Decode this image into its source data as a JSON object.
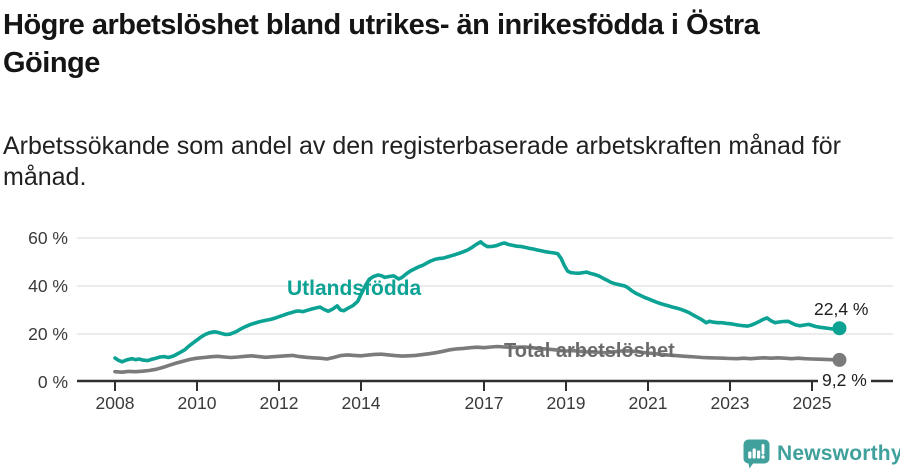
{
  "header": {
    "title_lines": [
      "Högre arbetslöshet bland utrikes- än inrikesfödda i Östra",
      "Göinge"
    ],
    "subtitle_lines": [
      "Arbetssökande som andel av den registerbaserade arbetskraften månad för",
      "månad."
    ]
  },
  "chart_data": {
    "type": "line",
    "title": "Högre arbetslöshet bland utrikes- än inrikesfödda i Östra Göinge",
    "subtitle": "Arbetssökande som andel av den registerbaserade arbetskraften månad för månad.",
    "unit": "%",
    "x_axis": {
      "ticks": [
        2008,
        2010,
        2012,
        2014,
        2017,
        2019,
        2021,
        2023,
        2025
      ],
      "tick_labels": [
        "2008",
        "2010",
        "2012",
        "2014",
        "2017",
        "2019",
        "2021",
        "2023",
        "2025"
      ],
      "range": [
        2007.1,
        2027.1
      ]
    },
    "y_axis": {
      "ticks": [
        0,
        20,
        40,
        60
      ],
      "tick_labels": [
        "0 %",
        "20 %",
        "40 %",
        "60 %"
      ],
      "range": [
        0,
        62
      ],
      "grid": true
    },
    "legend_position": "inline-labels",
    "grid_color": "#e0e0e0",
    "axis_color": "#2f2f2f",
    "series": [
      {
        "name": "Utlandsfödda",
        "color": "#0CA294",
        "label_color": "#0CA294",
        "end_label": "22,4 %",
        "end_value": 22.4,
        "points": [
          [
            2008.0,
            10.0
          ],
          [
            2008.08,
            9.1
          ],
          [
            2008.17,
            8.4
          ],
          [
            2008.3,
            9.3
          ],
          [
            2008.42,
            9.7
          ],
          [
            2008.5,
            9.3
          ],
          [
            2008.58,
            9.6
          ],
          [
            2008.7,
            9.1
          ],
          [
            2008.8,
            8.9
          ],
          [
            2008.92,
            9.6
          ],
          [
            2009.0,
            9.9
          ],
          [
            2009.1,
            10.4
          ],
          [
            2009.2,
            10.6
          ],
          [
            2009.3,
            10.2
          ],
          [
            2009.42,
            10.8
          ],
          [
            2009.5,
            11.5
          ],
          [
            2009.6,
            12.4
          ],
          [
            2009.7,
            13.4
          ],
          [
            2009.8,
            14.9
          ],
          [
            2009.92,
            16.5
          ],
          [
            2010.0,
            17.5
          ],
          [
            2010.1,
            18.8
          ],
          [
            2010.2,
            19.8
          ],
          [
            2010.3,
            20.5
          ],
          [
            2010.42,
            20.9
          ],
          [
            2010.5,
            20.7
          ],
          [
            2010.6,
            20.2
          ],
          [
            2010.7,
            19.8
          ],
          [
            2010.8,
            19.9
          ],
          [
            2010.92,
            20.7
          ],
          [
            2011.0,
            21.4
          ],
          [
            2011.1,
            22.4
          ],
          [
            2011.2,
            23.2
          ],
          [
            2011.3,
            23.9
          ],
          [
            2011.42,
            24.6
          ],
          [
            2011.5,
            25.0
          ],
          [
            2011.6,
            25.4
          ],
          [
            2011.7,
            25.8
          ],
          [
            2011.8,
            26.1
          ],
          [
            2011.92,
            26.7
          ],
          [
            2012.0,
            27.2
          ],
          [
            2012.1,
            27.8
          ],
          [
            2012.2,
            28.4
          ],
          [
            2012.3,
            28.9
          ],
          [
            2012.42,
            29.5
          ],
          [
            2012.5,
            29.6
          ],
          [
            2012.58,
            29.3
          ],
          [
            2012.7,
            29.9
          ],
          [
            2012.8,
            30.4
          ],
          [
            2012.92,
            30.9
          ],
          [
            2013.0,
            31.2
          ],
          [
            2013.1,
            30.2
          ],
          [
            2013.2,
            29.5
          ],
          [
            2013.3,
            30.3
          ],
          [
            2013.42,
            31.7
          ],
          [
            2013.5,
            30.0
          ],
          [
            2013.58,
            29.7
          ],
          [
            2013.7,
            30.9
          ],
          [
            2013.8,
            31.8
          ],
          [
            2013.92,
            33.6
          ],
          [
            2014.0,
            36.5
          ],
          [
            2014.1,
            39.9
          ],
          [
            2014.2,
            42.8
          ],
          [
            2014.3,
            43.9
          ],
          [
            2014.42,
            44.6
          ],
          [
            2014.5,
            44.3
          ],
          [
            2014.58,
            43.6
          ],
          [
            2014.7,
            44.0
          ],
          [
            2014.8,
            44.2
          ],
          [
            2014.92,
            42.9
          ],
          [
            2015.0,
            43.6
          ],
          [
            2015.1,
            45.0
          ],
          [
            2015.2,
            46.2
          ],
          [
            2015.3,
            47.1
          ],
          [
            2015.42,
            48.1
          ],
          [
            2015.5,
            48.6
          ],
          [
            2015.6,
            49.5
          ],
          [
            2015.7,
            50.4
          ],
          [
            2015.8,
            51.1
          ],
          [
            2015.92,
            51.5
          ],
          [
            2016.0,
            51.6
          ],
          [
            2016.1,
            52.1
          ],
          [
            2016.2,
            52.6
          ],
          [
            2016.3,
            53.1
          ],
          [
            2016.42,
            53.8
          ],
          [
            2016.5,
            54.3
          ],
          [
            2016.6,
            55.0
          ],
          [
            2016.7,
            56.0
          ],
          [
            2016.8,
            57.2
          ],
          [
            2016.92,
            58.4
          ],
          [
            2017.0,
            57.2
          ],
          [
            2017.08,
            56.4
          ],
          [
            2017.2,
            56.5
          ],
          [
            2017.3,
            56.8
          ],
          [
            2017.42,
            57.6
          ],
          [
            2017.5,
            57.9
          ],
          [
            2017.6,
            57.3
          ],
          [
            2017.7,
            56.9
          ],
          [
            2017.8,
            56.6
          ],
          [
            2017.92,
            56.4
          ],
          [
            2018.0,
            56.1
          ],
          [
            2018.1,
            55.7
          ],
          [
            2018.2,
            55.4
          ],
          [
            2018.3,
            55.0
          ],
          [
            2018.42,
            54.6
          ],
          [
            2018.5,
            54.3
          ],
          [
            2018.6,
            54.0
          ],
          [
            2018.7,
            53.8
          ],
          [
            2018.8,
            53.4
          ],
          [
            2018.88,
            51.5
          ],
          [
            2018.96,
            48.5
          ],
          [
            2019.04,
            46.2
          ],
          [
            2019.12,
            45.6
          ],
          [
            2019.2,
            45.4
          ],
          [
            2019.3,
            45.3
          ],
          [
            2019.42,
            45.6
          ],
          [
            2019.5,
            45.8
          ],
          [
            2019.6,
            45.2
          ],
          [
            2019.7,
            44.8
          ],
          [
            2019.8,
            44.2
          ],
          [
            2019.92,
            43.1
          ],
          [
            2020.0,
            42.4
          ],
          [
            2020.1,
            41.5
          ],
          [
            2020.2,
            40.9
          ],
          [
            2020.3,
            40.5
          ],
          [
            2020.42,
            40.1
          ],
          [
            2020.5,
            39.4
          ],
          [
            2020.6,
            38.1
          ],
          [
            2020.7,
            37.0
          ],
          [
            2020.8,
            36.2
          ],
          [
            2020.92,
            35.2
          ],
          [
            2021.0,
            34.7
          ],
          [
            2021.1,
            34.0
          ],
          [
            2021.2,
            33.3
          ],
          [
            2021.3,
            32.7
          ],
          [
            2021.42,
            32.1
          ],
          [
            2021.5,
            31.7
          ],
          [
            2021.6,
            31.2
          ],
          [
            2021.7,
            30.8
          ],
          [
            2021.8,
            30.3
          ],
          [
            2021.92,
            29.5
          ],
          [
            2022.0,
            28.9
          ],
          [
            2022.1,
            27.9
          ],
          [
            2022.2,
            27.0
          ],
          [
            2022.3,
            26.1
          ],
          [
            2022.42,
            24.7
          ],
          [
            2022.5,
            25.3
          ],
          [
            2022.6,
            24.9
          ],
          [
            2022.7,
            24.7
          ],
          [
            2022.8,
            24.7
          ],
          [
            2022.92,
            24.4
          ],
          [
            2023.0,
            24.3
          ],
          [
            2023.1,
            24.0
          ],
          [
            2023.2,
            23.7
          ],
          [
            2023.3,
            23.5
          ],
          [
            2023.42,
            23.3
          ],
          [
            2023.5,
            23.6
          ],
          [
            2023.6,
            24.3
          ],
          [
            2023.7,
            25.1
          ],
          [
            2023.8,
            26.0
          ],
          [
            2023.9,
            26.7
          ],
          [
            2024.0,
            25.5
          ],
          [
            2024.1,
            24.7
          ],
          [
            2024.2,
            25.0
          ],
          [
            2024.3,
            25.2
          ],
          [
            2024.42,
            25.3
          ],
          [
            2024.5,
            24.6
          ],
          [
            2024.6,
            23.8
          ],
          [
            2024.7,
            23.4
          ],
          [
            2024.8,
            23.7
          ],
          [
            2024.92,
            24.0
          ],
          [
            2025.0,
            23.6
          ],
          [
            2025.1,
            23.1
          ],
          [
            2025.2,
            22.8
          ],
          [
            2025.3,
            22.6
          ],
          [
            2025.42,
            22.3
          ],
          [
            2025.5,
            22.1
          ],
          [
            2025.6,
            22.2
          ],
          [
            2025.67,
            22.4
          ]
        ]
      },
      {
        "name": "Total arbetslöshet",
        "color": "#7B7B7B",
        "label_color": "#6B6B6B",
        "end_label": "9,2 %",
        "end_value": 9.2,
        "points": [
          [
            2008.0,
            4.3
          ],
          [
            2008.17,
            4.1
          ],
          [
            2008.33,
            4.4
          ],
          [
            2008.5,
            4.3
          ],
          [
            2008.67,
            4.5
          ],
          [
            2008.83,
            4.8
          ],
          [
            2009.0,
            5.3
          ],
          [
            2009.17,
            6.1
          ],
          [
            2009.33,
            7.0
          ],
          [
            2009.5,
            7.9
          ],
          [
            2009.67,
            8.7
          ],
          [
            2009.83,
            9.4
          ],
          [
            2010.0,
            9.9
          ],
          [
            2010.17,
            10.2
          ],
          [
            2010.33,
            10.5
          ],
          [
            2010.5,
            10.7
          ],
          [
            2010.67,
            10.4
          ],
          [
            2010.83,
            10.2
          ],
          [
            2011.0,
            10.4
          ],
          [
            2011.17,
            10.7
          ],
          [
            2011.33,
            10.9
          ],
          [
            2011.5,
            10.6
          ],
          [
            2011.67,
            10.3
          ],
          [
            2011.83,
            10.5
          ],
          [
            2012.0,
            10.7
          ],
          [
            2012.17,
            10.9
          ],
          [
            2012.33,
            11.1
          ],
          [
            2012.5,
            10.6
          ],
          [
            2012.67,
            10.3
          ],
          [
            2012.83,
            10.1
          ],
          [
            2013.0,
            9.9
          ],
          [
            2013.17,
            9.6
          ],
          [
            2013.33,
            10.2
          ],
          [
            2013.5,
            11.0
          ],
          [
            2013.67,
            11.3
          ],
          [
            2013.83,
            11.1
          ],
          [
            2014.0,
            10.9
          ],
          [
            2014.17,
            11.2
          ],
          [
            2014.33,
            11.5
          ],
          [
            2014.5,
            11.6
          ],
          [
            2014.67,
            11.3
          ],
          [
            2014.83,
            11.0
          ],
          [
            2015.0,
            10.8
          ],
          [
            2015.17,
            10.9
          ],
          [
            2015.33,
            11.1
          ],
          [
            2015.5,
            11.4
          ],
          [
            2015.67,
            11.8
          ],
          [
            2015.83,
            12.2
          ],
          [
            2016.0,
            12.8
          ],
          [
            2016.17,
            13.4
          ],
          [
            2016.33,
            13.8
          ],
          [
            2016.5,
            14.0
          ],
          [
            2016.67,
            14.3
          ],
          [
            2016.83,
            14.5
          ],
          [
            2017.0,
            14.3
          ],
          [
            2017.17,
            14.6
          ],
          [
            2017.33,
            14.8
          ],
          [
            2017.5,
            14.6
          ],
          [
            2017.67,
            14.4
          ],
          [
            2017.83,
            14.5
          ],
          [
            2018.0,
            14.6
          ],
          [
            2018.17,
            14.3
          ],
          [
            2018.33,
            14.0
          ],
          [
            2018.5,
            13.8
          ],
          [
            2018.67,
            13.5
          ],
          [
            2018.83,
            13.2
          ],
          [
            2019.0,
            12.9
          ],
          [
            2019.17,
            13.1
          ],
          [
            2019.33,
            12.8
          ],
          [
            2019.5,
            12.6
          ],
          [
            2019.67,
            12.5
          ],
          [
            2019.83,
            12.3
          ],
          [
            2020.0,
            12.2
          ],
          [
            2020.17,
            12.6
          ],
          [
            2020.33,
            12.9
          ],
          [
            2020.5,
            13.0
          ],
          [
            2020.67,
            12.7
          ],
          [
            2020.83,
            12.4
          ],
          [
            2021.0,
            12.1
          ],
          [
            2021.17,
            11.8
          ],
          [
            2021.33,
            11.5
          ],
          [
            2021.5,
            11.2
          ],
          [
            2021.67,
            11.0
          ],
          [
            2021.83,
            10.8
          ],
          [
            2022.0,
            10.6
          ],
          [
            2022.17,
            10.4
          ],
          [
            2022.33,
            10.2
          ],
          [
            2022.5,
            10.1
          ],
          [
            2022.67,
            10.0
          ],
          [
            2022.83,
            9.9
          ],
          [
            2023.0,
            9.8
          ],
          [
            2023.17,
            9.7
          ],
          [
            2023.33,
            9.9
          ],
          [
            2023.5,
            9.7
          ],
          [
            2023.67,
            9.9
          ],
          [
            2023.83,
            10.1
          ],
          [
            2024.0,
            9.9
          ],
          [
            2024.17,
            10.1
          ],
          [
            2024.33,
            9.9
          ],
          [
            2024.5,
            9.7
          ],
          [
            2024.67,
            9.9
          ],
          [
            2024.83,
            9.7
          ],
          [
            2025.0,
            9.6
          ],
          [
            2025.17,
            9.5
          ],
          [
            2025.33,
            9.4
          ],
          [
            2025.5,
            9.3
          ],
          [
            2025.67,
            9.2
          ]
        ]
      }
    ]
  },
  "footer": {
    "logo_text": "Newsworthy",
    "logo_color": "#3FA09C"
  }
}
